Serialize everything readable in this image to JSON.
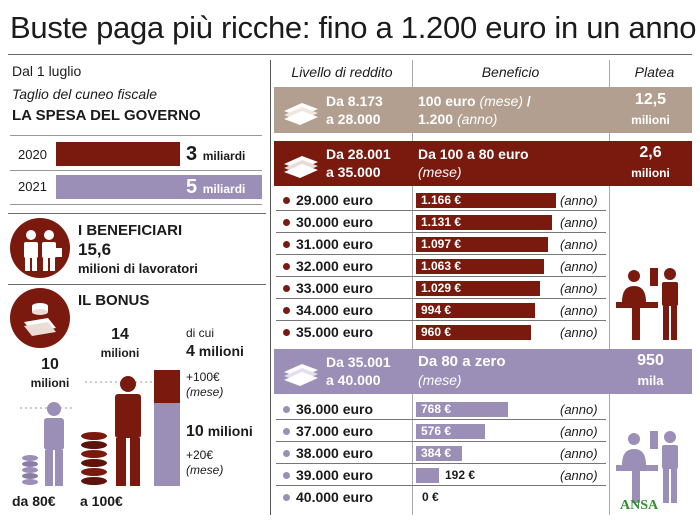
{
  "title": "Buste paga più ricche: fino a 1.200 euro in un anno",
  "left": {
    "date": "Dal 1 luglio",
    "subtitle": "Taglio del cuneo fiscale",
    "spending_heading": "LA SPESA DEL GOVERNO",
    "spending": [
      {
        "year": "2020",
        "value": "3",
        "unit": "miliardi",
        "amount": 3,
        "color": "#7a1a0e"
      },
      {
        "year": "2021",
        "value": "5",
        "unit": "miliardi",
        "amount": 5,
        "color": "#9b8fb8"
      }
    ],
    "beneficiaries_heading": "I BENEFICIARI",
    "beneficiaries_value": "15,6",
    "beneficiaries_unit": "milioni di lavoratori",
    "bonus_heading": "IL BONUS",
    "bonus": {
      "group80_value": "10",
      "group80_unit": "milioni",
      "group80_label": "da 80€",
      "group100_value": "14",
      "group100_unit": "milioni",
      "group100_label": "a 100€",
      "of_which": "di cui",
      "split_a_value": "4",
      "split_a_unit": "milioni",
      "split_a_desc1": "+100€",
      "split_a_desc2": "(mese)",
      "split_b_value": "10",
      "split_b_unit": "milioni",
      "split_b_desc1": "+20€",
      "split_b_desc2": "(mese)"
    }
  },
  "table": {
    "headers": [
      "Livello di reddito",
      "Beneficio",
      "Platea"
    ],
    "bands": [
      {
        "from": "Da 8.173",
        "to": "a 28.000",
        "benefit_main": "100 euro",
        "benefit_note": "(mese)",
        "benefit_sep": " /",
        "benefit_line2": "1.200",
        "benefit_line2_note": "(anno)",
        "platea_value": "12,5",
        "platea_unit": "milioni",
        "color": "#b39f8f"
      },
      {
        "from": "Da 28.001",
        "to": "a 35.000",
        "benefit_main": "Da 100 a 80 euro",
        "benefit_note": "(mese)",
        "platea_value": "2,6",
        "platea_unit": "milioni",
        "color": "#7a1a0e"
      },
      {
        "from": "Da 35.001",
        "to": "a 40.000",
        "benefit_main": "Da 80 a zero",
        "benefit_note": "(mese)",
        "platea_value": "950",
        "platea_unit": "mila",
        "color": "#9b8fb8"
      }
    ],
    "period_label": "(anno)",
    "rows_band2": [
      {
        "income": "29.000 euro",
        "benefit": "1.166 €",
        "value": 1166
      },
      {
        "income": "30.000 euro",
        "benefit": "1.131 €",
        "value": 1131
      },
      {
        "income": "31.000 euro",
        "benefit": "1.097 €",
        "value": 1097
      },
      {
        "income": "32.000 euro",
        "benefit": "1.063 €",
        "value": 1063
      },
      {
        "income": "33.000 euro",
        "benefit": "1.029 €",
        "value": 1029
      },
      {
        "income": "34.000 euro",
        "benefit": "994 €",
        "value": 994
      },
      {
        "income": "35.000 euro",
        "benefit": "960 €",
        "value": 960
      }
    ],
    "rows_band3": [
      {
        "income": "36.000 euro",
        "benefit": "768 €",
        "value": 768
      },
      {
        "income": "37.000 euro",
        "benefit": "576 €",
        "value": 576
      },
      {
        "income": "38.000 euro",
        "benefit": "384 €",
        "value": 384
      },
      {
        "income": "39.000 euro",
        "benefit": "192 €",
        "value": 192
      },
      {
        "income": "40.000 euro",
        "benefit": "0 €",
        "value": 0
      }
    ]
  },
  "source": "ANSA",
  "chart_data": [
    {
      "type": "bar",
      "title": "LA SPESA DEL GOVERNO",
      "categories": [
        "2020",
        "2021"
      ],
      "values": [
        3,
        5
      ],
      "unit": "miliardi"
    },
    {
      "type": "bar",
      "title": "IL BONUS",
      "categories": [
        "da 80€",
        "a 100€"
      ],
      "values": [
        10,
        14
      ],
      "unit": "milioni",
      "stack_of_second": [
        {
          "value": 4,
          "desc": "+100€ (mese)"
        },
        {
          "value": 10,
          "desc": "+20€ (mese)"
        }
      ]
    },
    {
      "type": "bar",
      "title": "Beneficio (anno)",
      "categories": [
        "29.000 euro",
        "30.000 euro",
        "31.000 euro",
        "32.000 euro",
        "33.000 euro",
        "34.000 euro",
        "35.000 euro",
        "36.000 euro",
        "37.000 euro",
        "38.000 euro",
        "39.000 euro",
        "40.000 euro"
      ],
      "values": [
        1166,
        1131,
        1097,
        1063,
        1029,
        994,
        960,
        768,
        576,
        384,
        192,
        0
      ],
      "unit": "€"
    }
  ]
}
